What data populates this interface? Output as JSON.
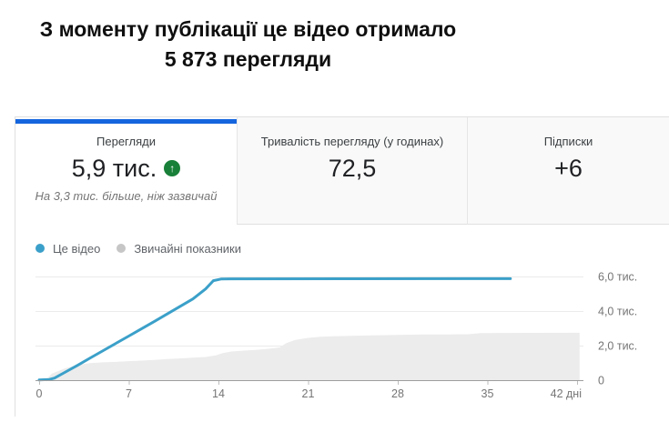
{
  "header": {
    "title_line1": "З моменту публікації це відео отримало",
    "title_line2": "5 873 перегляди"
  },
  "tabs": [
    {
      "id": "views",
      "label": "Перегляди",
      "value": "5,9 тис.",
      "trend_icon": "arrow-up-circle",
      "note": "На 3,3 тис. більше, ніж зазвичай",
      "active": true
    },
    {
      "id": "watch-time",
      "label": "Тривалість перегляду (у годинах)",
      "value": "72,5",
      "active": false
    },
    {
      "id": "subscriptions",
      "label": "Підписки",
      "value": "+6",
      "active": false
    }
  ],
  "legend": [
    {
      "label": "Це відео",
      "color": "#3ba0c9"
    },
    {
      "label": "Звичайні показники",
      "color": "#c6c6c6"
    }
  ],
  "chart_data": {
    "type": "line",
    "title": "Views since publication vs typical performance",
    "xlabel": "дні",
    "ylabel": "",
    "xlim": [
      0,
      42
    ],
    "ylim": [
      0,
      6000
    ],
    "grid": true,
    "legend_position": "top-left",
    "x_ticks": [
      "0",
      "7",
      "14",
      "21",
      "28",
      "35",
      "42 дні"
    ],
    "x_tick_days": [
      0,
      7,
      14,
      21,
      28,
      35,
      42
    ],
    "y_ticks": [
      "0",
      "2,0 тис.",
      "4,0 тис.",
      "6,0 тис."
    ],
    "y_tick_values": [
      0,
      2000,
      4000,
      6000
    ],
    "series": [
      {
        "name": "Звичайні показники",
        "type": "area",
        "color": "#ececec",
        "points": [
          [
            0,
            0
          ],
          [
            0.6,
            80
          ],
          [
            1,
            380
          ],
          [
            2,
            680
          ],
          [
            3,
            880
          ],
          [
            4,
            990
          ],
          [
            5,
            1030
          ],
          [
            6,
            1060
          ],
          [
            7,
            1100
          ],
          [
            8,
            1130
          ],
          [
            9,
            1170
          ],
          [
            10,
            1220
          ],
          [
            11,
            1260
          ],
          [
            12,
            1300
          ],
          [
            13,
            1340
          ],
          [
            13.8,
            1430
          ],
          [
            14.3,
            1560
          ],
          [
            15,
            1660
          ],
          [
            16,
            1710
          ],
          [
            17,
            1760
          ],
          [
            18,
            1820
          ],
          [
            18.8,
            1900
          ],
          [
            19.3,
            2150
          ],
          [
            20,
            2330
          ],
          [
            21,
            2450
          ],
          [
            22,
            2510
          ],
          [
            23,
            2540
          ],
          [
            24,
            2560
          ],
          [
            26,
            2590
          ],
          [
            28,
            2620
          ],
          [
            30,
            2640
          ],
          [
            32,
            2650
          ],
          [
            33.5,
            2660
          ],
          [
            34.5,
            2720
          ],
          [
            36,
            2730
          ],
          [
            42.2,
            2740
          ]
        ]
      },
      {
        "name": "Це відео",
        "type": "line",
        "color": "#3ba0c9",
        "points": [
          [
            0,
            10
          ],
          [
            0.8,
            40
          ],
          [
            1.2,
            120
          ],
          [
            2,
            450
          ],
          [
            3,
            860
          ],
          [
            4,
            1290
          ],
          [
            5,
            1710
          ],
          [
            6,
            2130
          ],
          [
            7,
            2550
          ],
          [
            8,
            2980
          ],
          [
            9,
            3400
          ],
          [
            10,
            3830
          ],
          [
            11,
            4270
          ],
          [
            12,
            4700
          ],
          [
            13,
            5280
          ],
          [
            13.6,
            5760
          ],
          [
            14.2,
            5850
          ],
          [
            15,
            5862
          ],
          [
            36.8,
            5873
          ]
        ]
      }
    ]
  },
  "colors": {
    "accent_blue": "#1465de",
    "line_blue": "#3ba0c9",
    "area_gray": "#ececec",
    "trend_green": "#188038",
    "axis_line": "#9e9e9e",
    "grid_line": "#ebebeb",
    "tick_label": "#757575"
  }
}
